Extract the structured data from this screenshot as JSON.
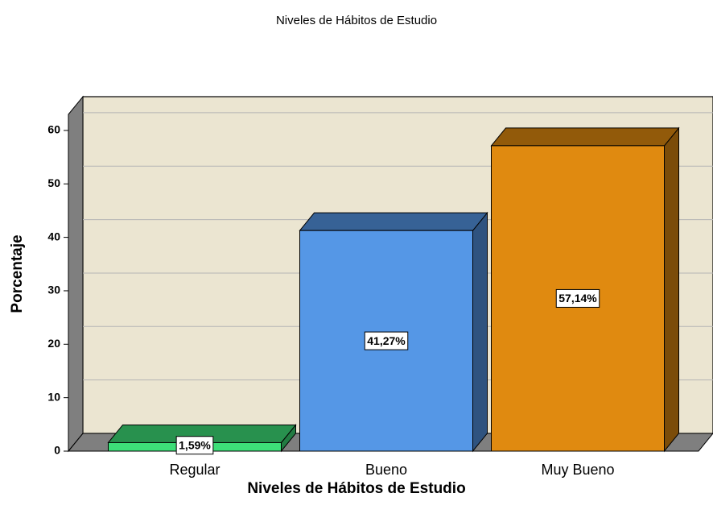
{
  "chart_data": {
    "type": "bar3d",
    "title": "Niveles de Hábitos de Estudio",
    "x_label": "Niveles de Hábitos de Estudio",
    "y_label": "Porcentaje",
    "categories": [
      "Regular",
      "Bueno",
      "Muy Bueno"
    ],
    "values": [
      1.59,
      41.27,
      57.14
    ],
    "value_labels": [
      "1,59%",
      "41,27%",
      "57,14%"
    ],
    "colors": [
      "#3ddf78",
      "#5597e6",
      "#e08a10"
    ],
    "ylim": [
      0,
      63
    ],
    "yticks": [
      0,
      10,
      20,
      30,
      40,
      50,
      60
    ],
    "grid": true
  }
}
